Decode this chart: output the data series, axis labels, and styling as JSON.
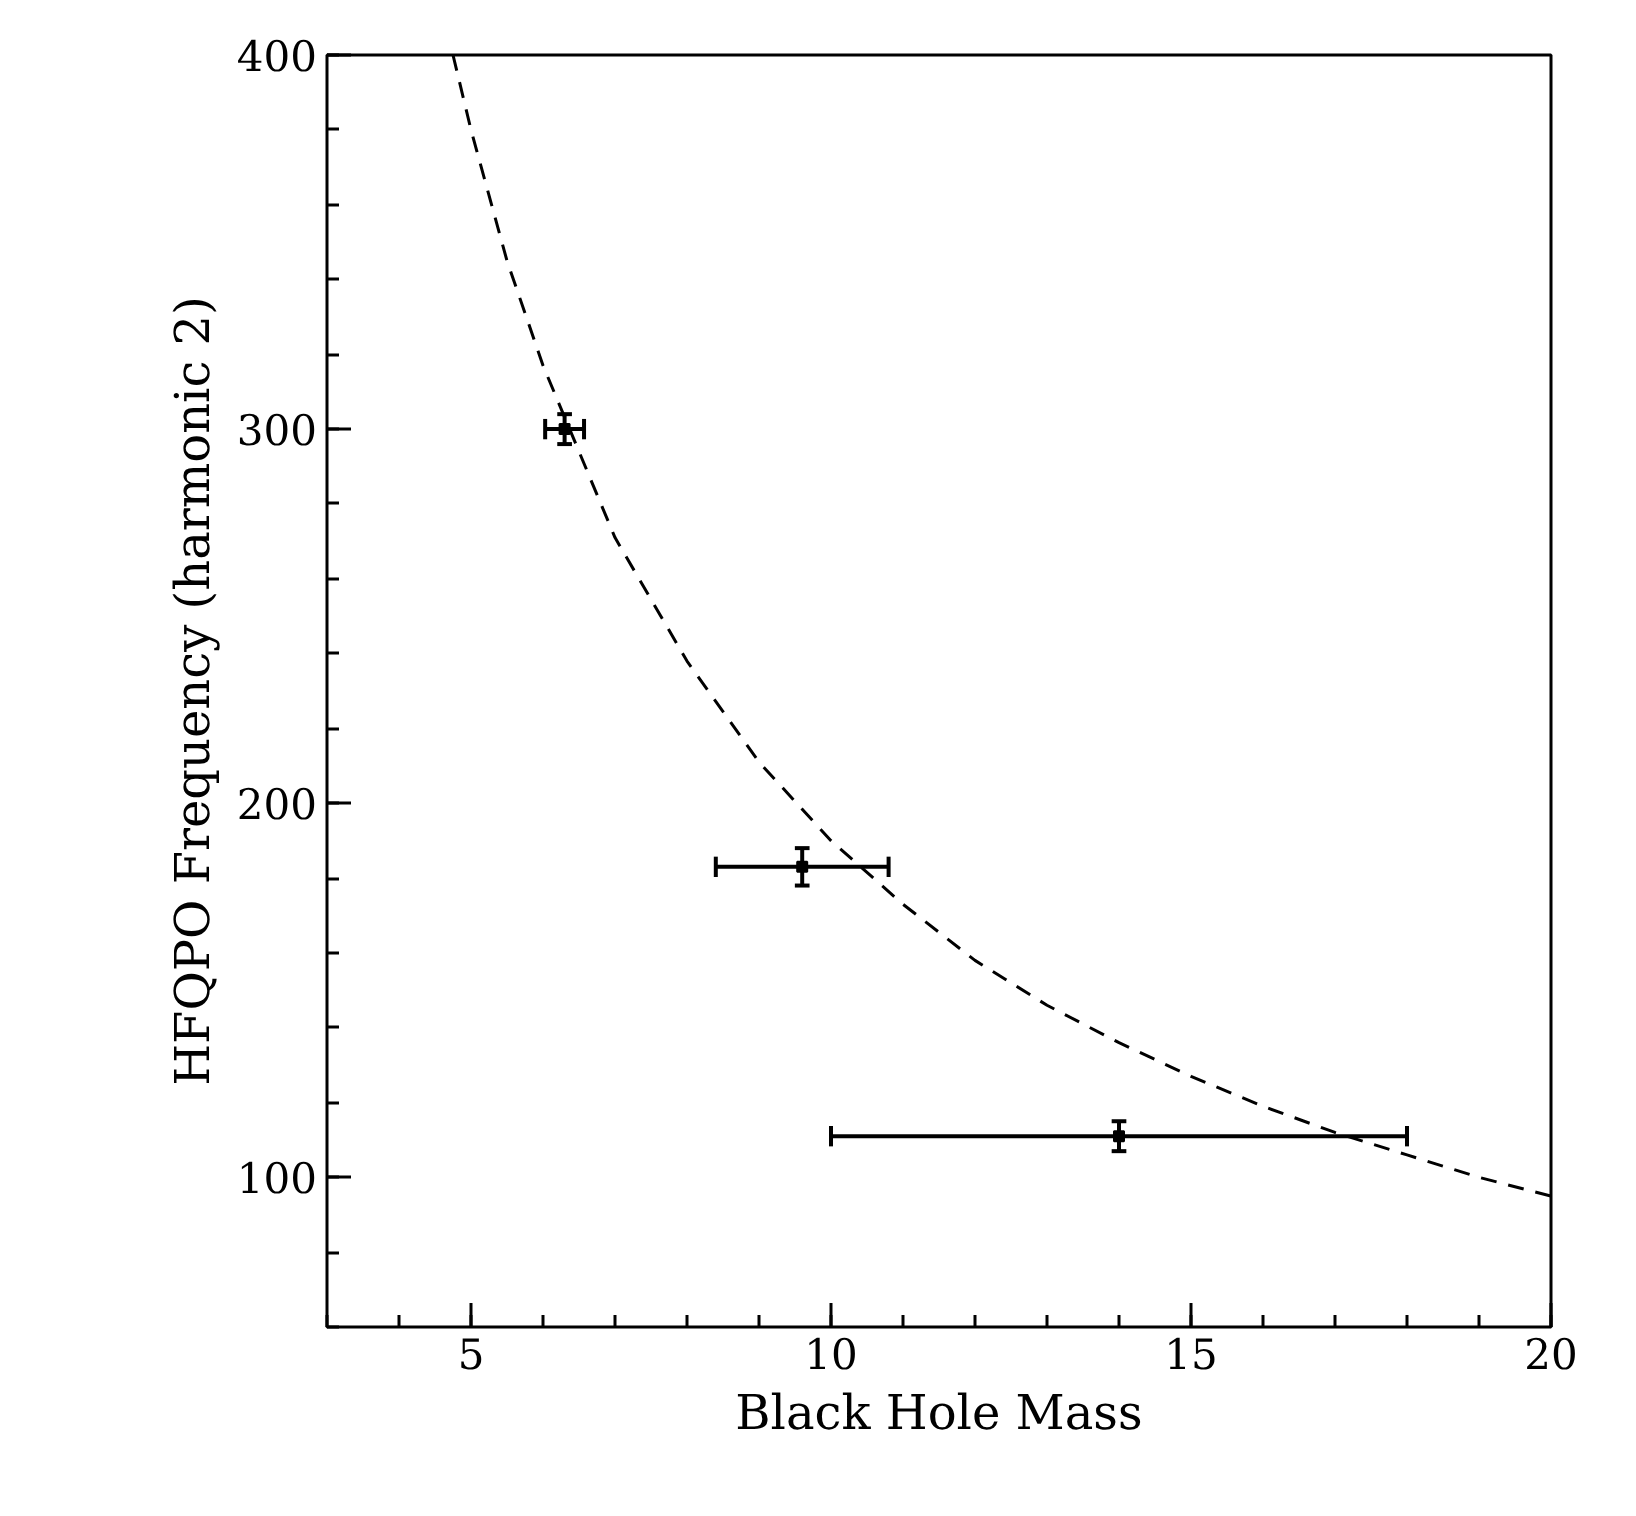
{
  "chart_data": {
    "type": "scatter",
    "xlabel": "Black Hole Mass",
    "ylabel": "HFQPO Frequency (harmonic 2)",
    "xlim": [
      3,
      20
    ],
    "ylim": [
      60,
      400
    ],
    "xticks": [
      5,
      10,
      15,
      20
    ],
    "yticks": [
      100,
      200,
      300,
      400
    ],
    "grid": false,
    "series": [
      {
        "color": "#000000",
        "x": [
          6.3,
          9.6,
          14.0
        ],
        "values": [
          300,
          183,
          111
        ],
        "errors": [
          4,
          5,
          4
        ],
        "xerrors": [
          0.27,
          [
            8.4,
            10.8
          ],
          [
            10.0,
            18.0
          ]
        ]
      },
      {
        "type": "line",
        "color": "#000000",
        "line_style": "dashed",
        "x": [
          4.75,
          5,
          5.5,
          6,
          7,
          8,
          9,
          10,
          11,
          12,
          13,
          14,
          15,
          16,
          17,
          18,
          19,
          20
        ],
        "values": [
          400,
          380,
          345,
          317,
          271,
          238,
          211,
          190,
          173,
          158,
          146,
          136,
          127,
          119,
          112,
          106,
          100,
          95
        ]
      }
    ]
  }
}
